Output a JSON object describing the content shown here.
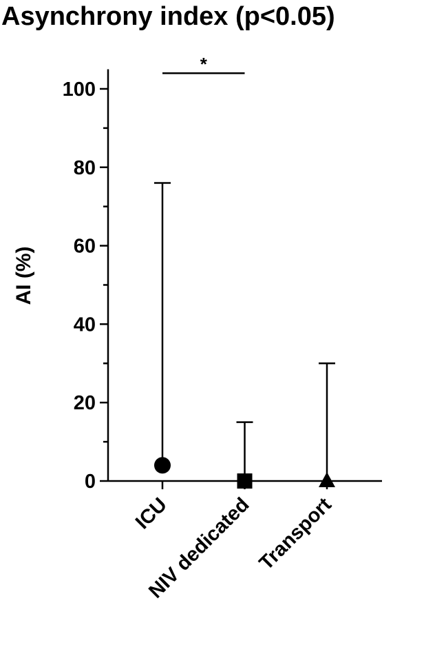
{
  "chart_data": {
    "type": "dot-range",
    "title": "Asynchrony index (p<0.05)",
    "y_label": "AI (%)",
    "categories": [
      "ICU",
      "NIV dedicated",
      "Transport"
    ],
    "values": [
      4,
      0,
      0
    ],
    "upper": [
      76,
      15,
      30
    ],
    "markers": [
      "circle",
      "square",
      "triangle"
    ],
    "color": "#000000",
    "ylim": [
      0,
      105
    ],
    "yticks": [
      0,
      20,
      40,
      60,
      80,
      100
    ],
    "minor_yticks": [
      10,
      30,
      50,
      70,
      90
    ],
    "annotations": [
      {
        "text": "*",
        "y": 104,
        "pair": [
          0,
          1
        ]
      }
    ]
  }
}
